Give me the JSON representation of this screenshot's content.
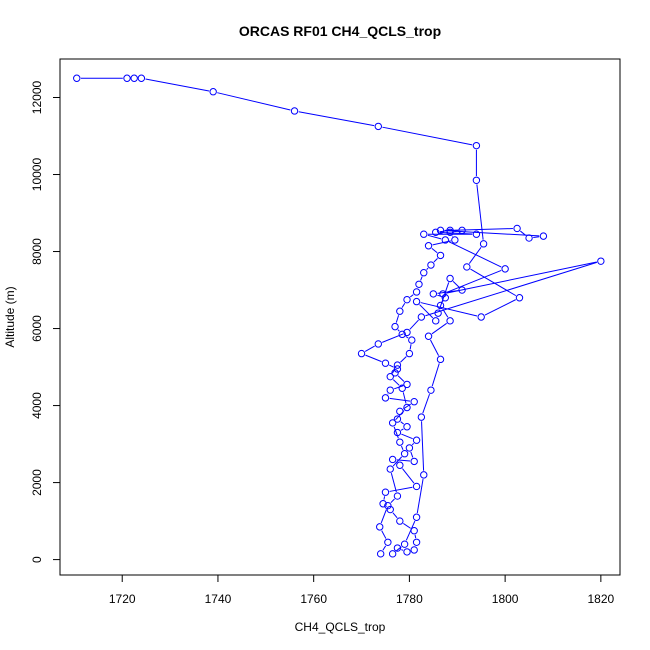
{
  "chart_data": {
    "type": "line",
    "title": "ORCAS RF01 CH4_QCLS_trop",
    "xlabel": "CH4_QCLS_trop",
    "ylabel": "Altitude (m)",
    "xlim": [
      1707,
      1824
    ],
    "ylim": [
      -400,
      13000
    ],
    "xticks": [
      1720,
      1740,
      1760,
      1780,
      1800,
      1820
    ],
    "yticks": [
      0,
      2000,
      4000,
      6000,
      8000,
      10000,
      12000
    ],
    "grid": false,
    "legend": "none",
    "series_color": "#0000ff",
    "marker": "open-circle",
    "series": [
      {
        "x": [
          1774.0,
          1775.5,
          1773.8,
          1775.5,
          1777.5,
          1776.0,
          1779.0,
          1778.0,
          1776.5,
          1779.5,
          1778.5,
          1776.0,
          1777.5,
          1780.0,
          1780.5,
          1778.5,
          1777.0,
          1778.0,
          1779.5,
          1781.5,
          1782.0,
          1783.0,
          1784.5,
          1786.5,
          1784.0,
          1789.5,
          1788.5,
          1791.0,
          1786.5,
          1808.0,
          1805.0,
          1802.5,
          1788.5,
          1785.5,
          1794.0,
          1783.0,
          1787.5,
          1800.0,
          1787.0,
          1820.0,
          1782.5,
          1779.5,
          1773.5,
          1770.0,
          1775.0,
          1777.5,
          1777.0,
          1779.5,
          1776.0,
          1775.0,
          1781.0,
          1778.0,
          1777.5,
          1779.5,
          1777.5,
          1781.5,
          1780.0,
          1781.0,
          1776.5,
          1778.0,
          1781.5,
          1775.0,
          1774.5,
          1776.0,
          1778.0,
          1781.0,
          1781.5,
          1781.0,
          1779.5,
          1777.5,
          1776.5,
          1779.0,
          1781.5,
          1783.0,
          1782.5,
          1784.5,
          1786.5,
          1784.0,
          1788.5,
          1786.5,
          1787.5,
          1785.0,
          1791.0,
          1788.5,
          1786.0,
          1785.5,
          1781.5,
          1795.0,
          1803.0,
          1792.0,
          1795.5,
          1794.0,
          1794.0,
          1773.5,
          1756.0,
          1739.0,
          1724.0,
          1722.5,
          1721.0,
          1710.5
        ],
        "y": [
          150,
          450,
          850,
          1400,
          1650,
          2350,
          2750,
          3050,
          3550,
          3950,
          4450,
          4750,
          5050,
          5350,
          5700,
          5850,
          6050,
          6450,
          6750,
          6950,
          7150,
          7450,
          7650,
          7900,
          8150,
          8300,
          8500,
          8550,
          8550,
          8400,
          8350,
          8600,
          8550,
          8500,
          8450,
          8450,
          8300,
          7550,
          6900,
          7750,
          6300,
          5900,
          5600,
          5350,
          5100,
          4950,
          4850,
          4550,
          4400,
          4200,
          4100,
          3850,
          3650,
          3450,
          3300,
          3100,
          2900,
          2550,
          2600,
          2450,
          1900,
          1750,
          1450,
          1300,
          1000,
          750,
          450,
          250,
          200,
          300,
          150,
          400,
          1100,
          2200,
          3700,
          4400,
          5200,
          5800,
          6200,
          6600,
          6800,
          6900,
          7000,
          7300,
          6400,
          6200,
          6700,
          6300,
          6800,
          7600,
          8200,
          9850,
          10750,
          11250,
          11650,
          12150,
          12500,
          12500,
          12500,
          12500
        ]
      }
    ]
  }
}
